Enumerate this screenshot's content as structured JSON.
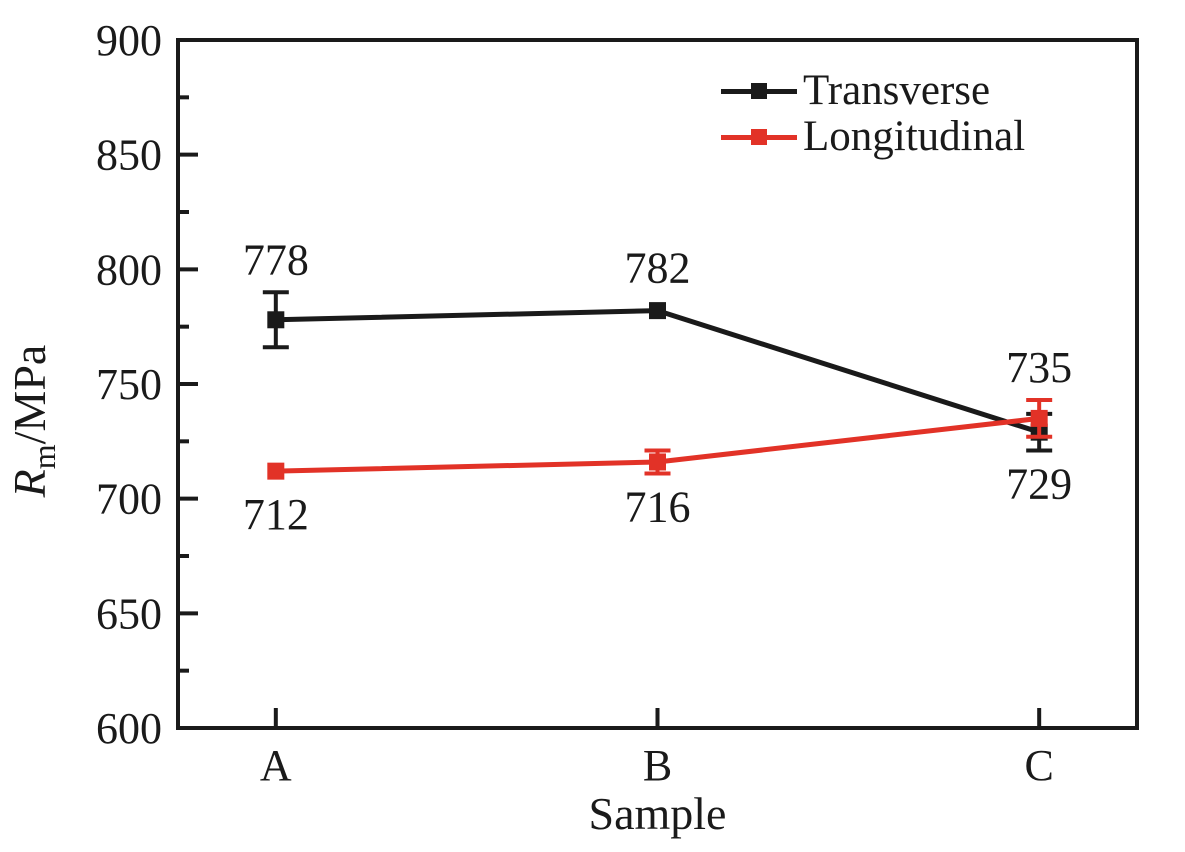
{
  "figure": {
    "background": "#ffffff",
    "ink_color": "#1a1a1a"
  },
  "axes": {
    "x_label": "Sample",
    "y_label": {
      "symbol": "R",
      "subscript": "m",
      "unit": "/MPa"
    }
  },
  "chart_data": {
    "type": "line",
    "title": "",
    "xlabel": "Sample",
    "ylabel": "Rm/MPa",
    "categories": [
      "A",
      "B",
      "C"
    ],
    "series": [
      {
        "name": "Transverse",
        "color": "#1a1a1a",
        "values": [
          778,
          782,
          729
        ],
        "errors": [
          12,
          1,
          8
        ],
        "value_label_side": [
          "above",
          "above",
          "below"
        ]
      },
      {
        "name": "Longitudinal",
        "color": "#e23227",
        "values": [
          712,
          716,
          735
        ],
        "errors": [
          1,
          5,
          8
        ],
        "value_label_side": [
          "below",
          "below",
          "above"
        ]
      }
    ],
    "ylim": [
      600,
      900
    ],
    "yticks": [
      600,
      650,
      700,
      750,
      800,
      850,
      900
    ],
    "ytick_major_step": 50,
    "ytick_minor_step": 25,
    "grid": false,
    "legend_position": "top-right-inside",
    "marker": "square",
    "error_bars": true
  }
}
